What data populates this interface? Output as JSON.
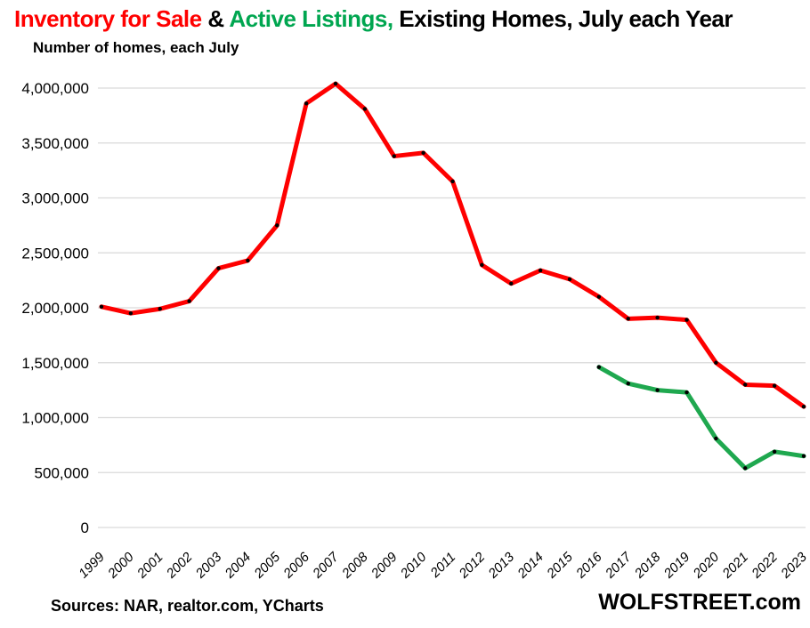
{
  "title": {
    "inventory": "Inventory for Sale",
    "amp": " & ",
    "active": "Active Listings,",
    "rest": " Existing Homes, July each Year"
  },
  "subtitle": "Number of homes, each July",
  "footer": {
    "sources": "Sources: NAR, realtor.com, YCharts",
    "brand": "WOLFSTREET.com"
  },
  "colors": {
    "title_red": "#FF0000",
    "title_green": "#00A650",
    "line_red": "#FE0000",
    "line_green": "#1FA84F",
    "grid": "#D9D9D9",
    "marker": "#000000",
    "text": "#000000"
  },
  "chart_data": {
    "type": "line",
    "title": "Inventory for Sale & Active Listings, Existing Homes, July each Year",
    "subtitle": "Number of homes, each July",
    "xlabel": "",
    "ylabel": "Number of homes, each July",
    "x": [
      1999,
      2000,
      2001,
      2002,
      2003,
      2004,
      2005,
      2006,
      2007,
      2008,
      2009,
      2010,
      2011,
      2012,
      2013,
      2014,
      2015,
      2016,
      2017,
      2018,
      2019,
      2020,
      2021,
      2022,
      2023
    ],
    "series": [
      {
        "name": "Inventory for Sale (NAR, existing homes, each July)",
        "color_key": "line_red",
        "values": [
          2010000,
          1950000,
          1990000,
          2060000,
          2360000,
          2430000,
          2750000,
          3860000,
          4040000,
          3810000,
          3380000,
          3410000,
          3150000,
          2390000,
          2220000,
          2340000,
          2260000,
          2100000,
          1900000,
          1910000,
          1890000,
          1500000,
          1300000,
          1290000,
          1100000
        ]
      },
      {
        "name": "Active Listings (realtor.com, each July)",
        "color_key": "line_green",
        "values": [
          null,
          null,
          null,
          null,
          null,
          null,
          null,
          null,
          null,
          null,
          null,
          null,
          null,
          null,
          null,
          null,
          null,
          1460000,
          1310000,
          1250000,
          1230000,
          810000,
          540000,
          690000,
          650000
        ]
      }
    ],
    "ylim": [
      0,
      4000000
    ],
    "y_ticks": [
      0,
      500000,
      1000000,
      1500000,
      2000000,
      2500000,
      3000000,
      3500000,
      4000000
    ],
    "grid": true,
    "legend": "none (series identified by title colors)"
  }
}
